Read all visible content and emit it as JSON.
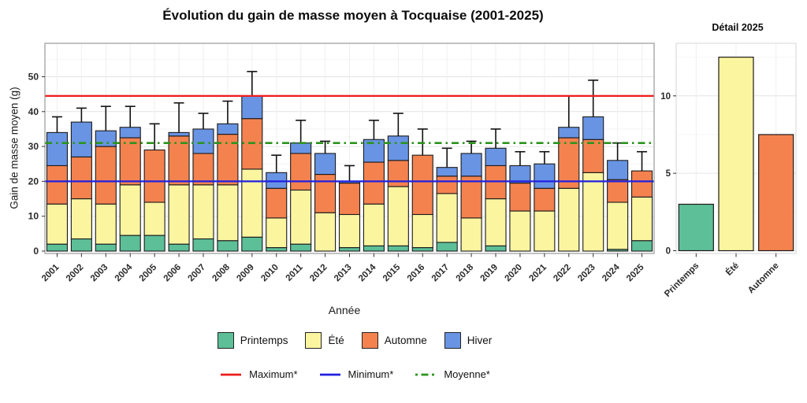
{
  "title": "Évolution du gain de masse moyen à Tocquaise (2001-2025)",
  "colors": {
    "printemps": "#5cbf98",
    "ete": "#fbf5a0",
    "automne": "#f4824f",
    "hiver": "#6994e4",
    "max_line": "#ee1c1c",
    "min_line": "#2020e0",
    "mean_line": "#2c941e",
    "bar_border": "#1a1a1a",
    "panel_border": "#9a9a9a",
    "grid_major": "#e4e4e4",
    "grid_minor": "#f4f4f4"
  },
  "chart_data": [
    {
      "id": "main",
      "type": "bar",
      "stacked": true,
      "title": "Évolution du gain de masse moyen à Tocquaise (2001-2025)",
      "xlabel": "Année",
      "ylabel": "Gain de masse moyen (g)",
      "ylim": [
        0,
        59.5
      ],
      "yticks": [
        0,
        10,
        20,
        30,
        40,
        50
      ],
      "grid": true,
      "legend_position": "bottom",
      "categories": [
        "2001",
        "2002",
        "2003",
        "2004",
        "2005",
        "2006",
        "2007",
        "2008",
        "2009",
        "2010",
        "2011",
        "2012",
        "2013",
        "2014",
        "2015",
        "2016",
        "2017",
        "2018",
        "2019",
        "2020",
        "2021",
        "2022",
        "2023",
        "2024",
        "2025"
      ],
      "series": [
        {
          "name": "Printemps",
          "color": "#5cbf98",
          "values": [
            2,
            3.5,
            2,
            4.5,
            4.5,
            2,
            3.5,
            3,
            4,
            1,
            2,
            0,
            1,
            1.5,
            1.5,
            1,
            2.5,
            0,
            1.5,
            0,
            0,
            0,
            0,
            0.5,
            3
          ]
        },
        {
          "name": "Été",
          "color": "#fbf5a0",
          "values": [
            11.5,
            11.5,
            11.5,
            14.5,
            9.5,
            17,
            15.5,
            16,
            19.5,
            8.5,
            15.5,
            11,
            9.5,
            12,
            17,
            9.5,
            14,
            9.5,
            13.5,
            11.5,
            11.5,
            18,
            22.5,
            13.5,
            12.5
          ]
        },
        {
          "name": "Automne",
          "color": "#f4824f",
          "values": [
            11,
            12,
            16.5,
            13.5,
            15,
            14,
            9,
            14.5,
            14.5,
            8.5,
            10.5,
            11,
            9,
            12,
            7.5,
            17,
            5,
            12,
            9.5,
            8,
            6.5,
            14.5,
            9.5,
            6.5,
            7.5
          ]
        },
        {
          "name": "Hiver",
          "color": "#6994e4",
          "values": [
            9.5,
            10,
            4.5,
            3,
            0,
            1,
            7,
            3,
            6.5,
            4.5,
            3,
            6,
            0.5,
            6.5,
            7,
            0,
            2.5,
            6.5,
            5,
            5,
            7,
            3,
            6.5,
            5.5,
            0
          ]
        }
      ],
      "error_bar_tops": [
        38.5,
        41,
        41.5,
        41.5,
        36.5,
        42.5,
        39.5,
        43,
        51.5,
        27.5,
        37.5,
        31.5,
        24.5,
        37.5,
        39.5,
        35,
        29.5,
        31.5,
        35,
        28.5,
        28.5,
        44.5,
        49,
        31,
        28.5
      ],
      "ref_lines": [
        {
          "label": "Maximum*",
          "value": 44.5,
          "color": "#ee1c1c",
          "style": "solid"
        },
        {
          "label": "Minimum*",
          "value": 20,
          "color": "#2020e0",
          "style": "solid"
        },
        {
          "label": "Moyenne*",
          "value": 31,
          "color": "#2c941e",
          "style": "dashdot"
        }
      ]
    },
    {
      "id": "detail",
      "type": "bar",
      "title": "Détail 2025",
      "xlabel": "",
      "ylabel": "",
      "categories": [
        "Printemps",
        "Été",
        "Automne"
      ],
      "values": [
        3,
        12.5,
        7.5
      ],
      "colors": [
        "#5cbf98",
        "#fbf5a0",
        "#f4824f"
      ],
      "yticks": [
        0,
        5,
        10
      ],
      "ylim": [
        0,
        13.4
      ],
      "grid": true
    }
  ]
}
